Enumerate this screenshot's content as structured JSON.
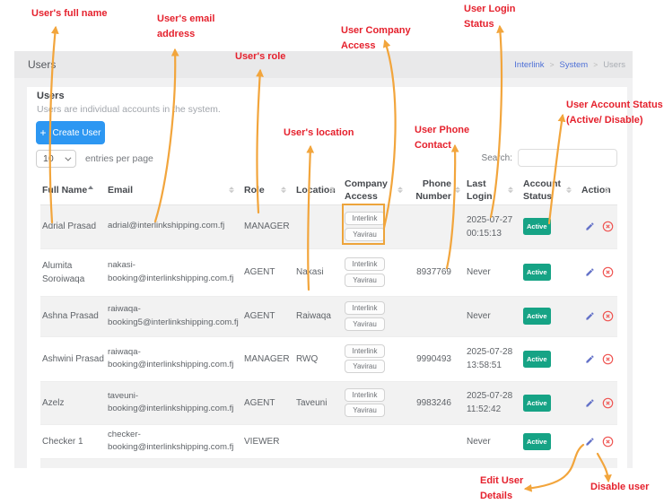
{
  "header_bar": {
    "title": "Users",
    "breadcrumb": {
      "items": [
        "Interlink",
        "System"
      ],
      "current": "Users",
      "separator": ">"
    }
  },
  "card": {
    "title": "Users",
    "subtitle": "Users are individual accounts in the system.",
    "create_button": {
      "plus": "+",
      "label": "Create User"
    },
    "entries": {
      "value": "10",
      "label": "entries per page"
    },
    "search": {
      "label": "Search:",
      "value": ""
    }
  },
  "table": {
    "columns": [
      "Full Name",
      "Email",
      "Role",
      "Location",
      "Company Access",
      "Phone Number",
      "Last Login",
      "Account Status",
      "Action"
    ],
    "rows": [
      {
        "name": "Adrial Prasad",
        "email": "adrial@interlinkshipping.com.fj",
        "role": "MANAGER",
        "location": "",
        "company": [
          "Interlink",
          "Yavirau"
        ],
        "phone": "",
        "last_login": "2025-07-27 00:15:13",
        "status": "Active"
      },
      {
        "name": "Alumita Soroiwaqa",
        "email": "nakasi-booking@interlinkshipping.com.fj",
        "role": "AGENT",
        "location": "Nakasi",
        "company": [
          "Interlink",
          "Yavirau"
        ],
        "phone": "8937769",
        "last_login": "Never",
        "status": "Active"
      },
      {
        "name": "Ashna Prasad",
        "email": "raiwaqa-booking5@interlinkshipping.com.fj",
        "role": "AGENT",
        "location": "Raiwaqa",
        "company": [
          "Interlink",
          "Yavirau"
        ],
        "phone": "",
        "last_login": "Never",
        "status": "Active"
      },
      {
        "name": "Ashwini Prasad",
        "email": "raiwaqa-booking@interlinkshipping.com.fj",
        "role": "MANAGER",
        "location": "RWQ",
        "company": [
          "Interlink",
          "Yavirau"
        ],
        "phone": "9990493",
        "last_login": "2025-07-28 13:58:51",
        "status": "Active"
      },
      {
        "name": "Azelz",
        "email": "taveuni-booking@interlinkshipping.com.fj",
        "role": "AGENT",
        "location": "Taveuni",
        "company": [
          "Interlink",
          "Yavirau"
        ],
        "phone": "9983246",
        "last_login": "2025-07-28 11:52:42",
        "status": "Active"
      },
      {
        "name": "Checker 1",
        "email": "checker-booking@interlinkshipping.com.fj",
        "role": "VIEWER",
        "location": "",
        "company": [],
        "phone": "",
        "last_login": "Never",
        "status": "Active"
      }
    ]
  },
  "annotations": {
    "colors": {
      "text": "#e5212d",
      "arrow": "#f2a53c"
    },
    "labels": [
      {
        "id": "fullname",
        "text": "User's full name"
      },
      {
        "id": "email",
        "text": "User's email\naddress"
      },
      {
        "id": "role",
        "text": "User's role"
      },
      {
        "id": "location",
        "text": "User's location"
      },
      {
        "id": "company",
        "text": "User Company\nAccess"
      },
      {
        "id": "phone",
        "text": "User Phone\nContact"
      },
      {
        "id": "login",
        "text": "User Login\nStatus"
      },
      {
        "id": "account",
        "text": "User Account Status\n(Active/ Disable)"
      },
      {
        "id": "edit",
        "text": "Edit User\nDetails"
      },
      {
        "id": "disable",
        "text": "Disable user"
      }
    ]
  }
}
